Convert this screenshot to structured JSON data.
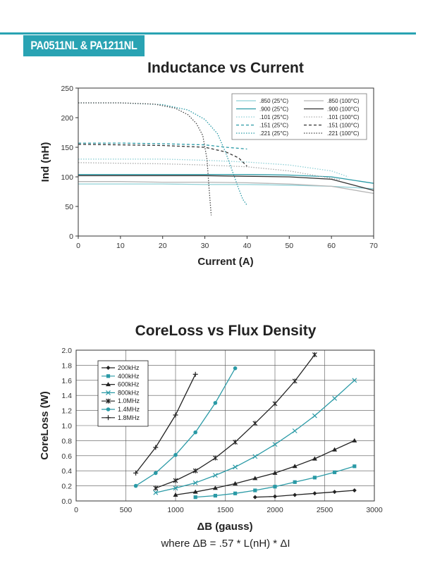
{
  "header": {
    "part_numbers": "PA0511NL & PA1211NL",
    "accent_color": "#29a3b3"
  },
  "chart_data": [
    {
      "type": "line",
      "title": "Inductance vs Current",
      "xlabel": "Current (A)",
      "ylabel": "Ind (nH)",
      "xlim": [
        0,
        70
      ],
      "ylim": [
        0,
        250
      ],
      "xticks": [
        "0",
        "10",
        "20",
        "30",
        "40",
        "50",
        "60",
        "70"
      ],
      "yticks": [
        "0",
        "50",
        "100",
        "150",
        "200",
        "250"
      ],
      "series": [
        {
          "name": ".850 (25°C)",
          "color": "#8fd0d6",
          "dash": "solid",
          "x": [
            0,
            10,
            20,
            30,
            40,
            50,
            60,
            70
          ],
          "y": [
            88,
            88,
            88,
            87,
            87,
            86,
            84,
            80
          ]
        },
        {
          "name": ".900 (25°C)",
          "color": "#2a9aa6",
          "dash": "solid",
          "x": [
            0,
            10,
            20,
            30,
            40,
            50,
            60,
            70
          ],
          "y": [
            104,
            104,
            104,
            104,
            104,
            103,
            100,
            89
          ]
        },
        {
          "name": ".101 (25°C)",
          "color": "#8fd0d6",
          "dash": "dotted",
          "x": [
            0,
            10,
            20,
            30,
            40,
            50,
            60,
            64
          ],
          "y": [
            130,
            130,
            130,
            128,
            125,
            120,
            110,
            100
          ]
        },
        {
          "name": ".151 (25°C)",
          "color": "#2a9aa6",
          "dash": "dashed",
          "x": [
            0,
            10,
            20,
            30,
            35,
            40
          ],
          "y": [
            157,
            157,
            156,
            154,
            150,
            147
          ]
        },
        {
          "name": ".221 (25°C)",
          "color": "#2a9aa6",
          "dash": "dotted",
          "x": [
            0,
            10,
            20,
            26,
            30,
            33,
            35,
            37,
            38,
            39,
            40
          ],
          "y": [
            225,
            225,
            222,
            213,
            197,
            173,
            140,
            100,
            80,
            62,
            52
          ]
        },
        {
          "name": ".850 (100°C)",
          "color": "#b5b5b5",
          "dash": "solid",
          "x": [
            0,
            10,
            20,
            30,
            40,
            50,
            60,
            70
          ],
          "y": [
            92,
            92,
            91,
            91,
            90,
            88,
            84,
            72
          ]
        },
        {
          "name": ".900 (100°C)",
          "color": "#333333",
          "dash": "solid",
          "x": [
            0,
            10,
            20,
            30,
            40,
            50,
            60,
            70
          ],
          "y": [
            102,
            102,
            102,
            102,
            101,
            100,
            96,
            77
          ]
        },
        {
          "name": ".101 (100°C)",
          "color": "#aaaaaa",
          "dash": "dotted",
          "x": [
            0,
            10,
            20,
            30,
            40,
            50,
            58,
            62
          ],
          "y": [
            124,
            123,
            122,
            120,
            117,
            110,
            100,
            95
          ]
        },
        {
          "name": ".151 (100°C)",
          "color": "#333333",
          "dash": "dashed",
          "x": [
            0,
            10,
            20,
            30,
            35,
            38,
            40
          ],
          "y": [
            155,
            154,
            153,
            150,
            142,
            132,
            118
          ]
        },
        {
          "name": ".221 (100°C)",
          "color": "#444444",
          "dash": "dotted",
          "x": [
            0,
            10,
            18,
            23,
            26,
            28,
            29.5,
            30.5,
            31,
            31.5
          ],
          "y": [
            225,
            225,
            223,
            216,
            205,
            190,
            170,
            130,
            80,
            35
          ]
        }
      ]
    },
    {
      "type": "line",
      "title": "CoreLoss vs Flux Density",
      "xlabel": "ΔB (gauss)",
      "ylabel": "CoreLoss (W)",
      "xlim": [
        0,
        3000
      ],
      "ylim": [
        0,
        2.0
      ],
      "xticks": [
        "0",
        "500",
        "1000",
        "1500",
        "2000",
        "2500",
        "3000"
      ],
      "yticks": [
        "0.0",
        "0.2",
        "0.4",
        "0.6",
        "0.8",
        "1.0",
        "1.2",
        "1.4",
        "1.6",
        "1.8",
        "2.0"
      ],
      "series": [
        {
          "name": "200kHz",
          "marker": "diamond",
          "color": "#222222",
          "x": [
            1800,
            2000,
            2200,
            2400,
            2600,
            2800
          ],
          "y": [
            0.05,
            0.06,
            0.08,
            0.1,
            0.12,
            0.14
          ]
        },
        {
          "name": "400kHz",
          "marker": "square",
          "color": "#2a9aa6",
          "x": [
            1200,
            1400,
            1600,
            1800,
            2000,
            2200,
            2400,
            2600,
            2800
          ],
          "y": [
            0.05,
            0.07,
            0.1,
            0.14,
            0.19,
            0.25,
            0.31,
            0.38,
            0.46
          ]
        },
        {
          "name": "600kHz",
          "marker": "triangle",
          "color": "#222222",
          "x": [
            1000,
            1200,
            1400,
            1600,
            1800,
            2000,
            2200,
            2400,
            2600,
            2800
          ],
          "y": [
            0.08,
            0.12,
            0.17,
            0.23,
            0.3,
            0.37,
            0.46,
            0.56,
            0.68,
            0.8
          ]
        },
        {
          "name": "800kHz",
          "marker": "x",
          "color": "#2a9aa6",
          "x": [
            800,
            1000,
            1200,
            1400,
            1600,
            1800,
            2000,
            2200,
            2400,
            2600,
            2800
          ],
          "y": [
            0.11,
            0.17,
            0.24,
            0.34,
            0.45,
            0.59,
            0.75,
            0.93,
            1.13,
            1.36,
            1.6
          ]
        },
        {
          "name": "1.0MHz",
          "marker": "star",
          "color": "#222222",
          "x": [
            800,
            1000,
            1200,
            1400,
            1600,
            1800,
            2000,
            2200,
            2400
          ],
          "y": [
            0.17,
            0.27,
            0.4,
            0.57,
            0.78,
            1.03,
            1.29,
            1.59,
            1.94
          ]
        },
        {
          "name": "1.4MHz",
          "marker": "circle",
          "color": "#2a9aa6",
          "x": [
            600,
            800,
            1000,
            1200,
            1400,
            1600
          ],
          "y": [
            0.2,
            0.37,
            0.61,
            0.91,
            1.3,
            1.76
          ]
        },
        {
          "name": "1.8MHz",
          "marker": "plus",
          "color": "#222222",
          "x": [
            600,
            800,
            1000,
            1200
          ],
          "y": [
            0.37,
            0.71,
            1.14,
            1.68
          ]
        }
      ],
      "footnote": "where ΔB = .57 * L(nH) * ΔI"
    }
  ]
}
